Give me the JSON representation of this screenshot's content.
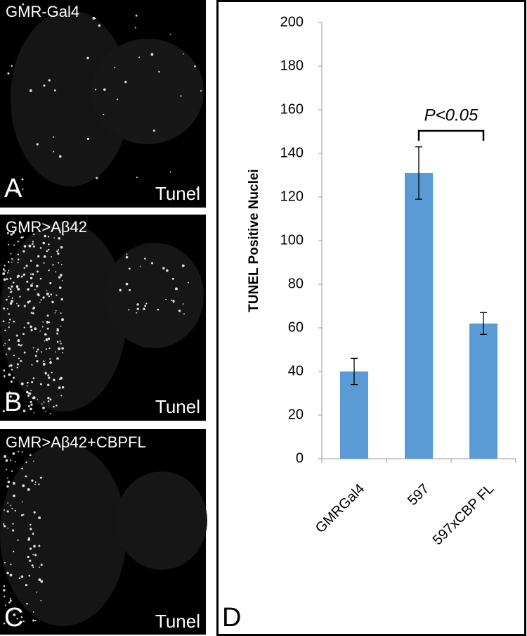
{
  "panels": [
    {
      "title": "GMR-Gal4",
      "letter": "A",
      "label": "Tunel"
    },
    {
      "title": "GMR>Aβ42",
      "letter": "B",
      "label": "Tunel"
    },
    {
      "title": "GMR>Aβ42+CBPFL",
      "letter": "C",
      "label": "Tunel"
    }
  ],
  "chart_letter": "D",
  "chart_data": {
    "type": "bar",
    "ylabel": "TUNEL Positive Nuclei",
    "categories": [
      "GMRGal4",
      "597",
      "597xCBP FL"
    ],
    "values": [
      40,
      131,
      62
    ],
    "errors": [
      6,
      12,
      5
    ],
    "color": "#5b9bd5",
    "ylim": [
      0,
      200
    ],
    "yticks": [
      0,
      20,
      40,
      60,
      80,
      100,
      120,
      140,
      160,
      180,
      200
    ],
    "annotation": "P<0.05",
    "grid": false
  }
}
